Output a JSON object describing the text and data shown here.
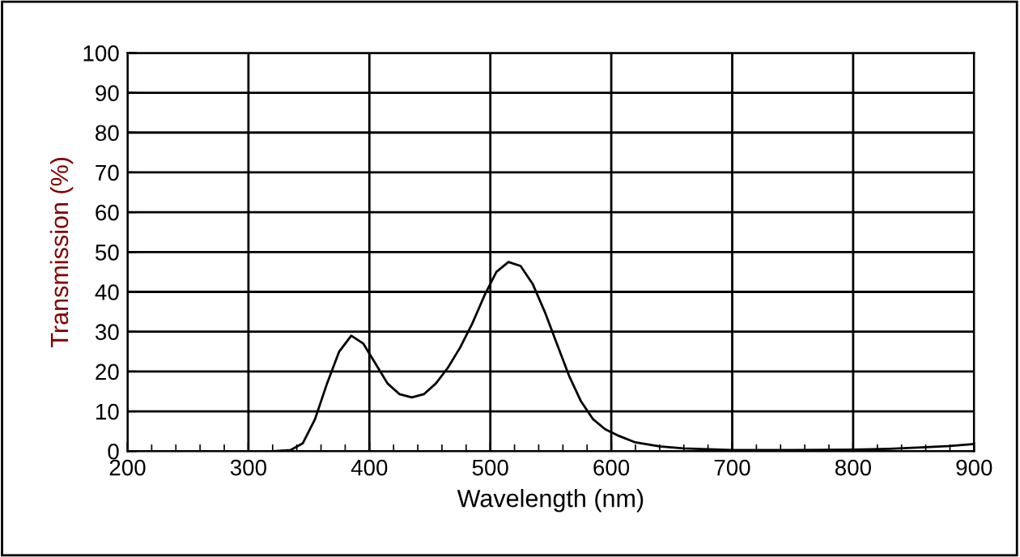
{
  "chart_data": {
    "type": "line",
    "xlabel": "Wavelength (nm)",
    "ylabel": "Transmission (%)",
    "xlim": [
      200,
      900
    ],
    "ylim": [
      0,
      100
    ],
    "xticks": [
      200,
      300,
      400,
      500,
      600,
      700,
      800,
      900
    ],
    "yticks": [
      0,
      10,
      20,
      30,
      40,
      50,
      60,
      70,
      80,
      90,
      100
    ],
    "grid": true,
    "marker": "none",
    "line_style": "solid",
    "series": [
      {
        "color": "#000000",
        "x": [
          320,
          335,
          345,
          355,
          365,
          375,
          385,
          395,
          405,
          415,
          425,
          435,
          445,
          455,
          465,
          475,
          485,
          495,
          505,
          515,
          525,
          535,
          545,
          555,
          565,
          575,
          585,
          595,
          605,
          620,
          640,
          660,
          700,
          750,
          800,
          830,
          860,
          880,
          900
        ],
        "values": [
          0,
          0.3,
          2,
          8,
          17,
          25,
          29,
          27,
          22,
          17,
          14.3,
          13.5,
          14.3,
          17,
          21,
          26,
          32,
          39,
          45,
          47.5,
          46.5,
          42,
          35,
          27,
          19,
          12.5,
          8,
          5.5,
          4,
          2.2,
          1.2,
          0.7,
          0.3,
          0.3,
          0.4,
          0.6,
          1.0,
          1.3,
          1.8
        ]
      }
    ]
  }
}
